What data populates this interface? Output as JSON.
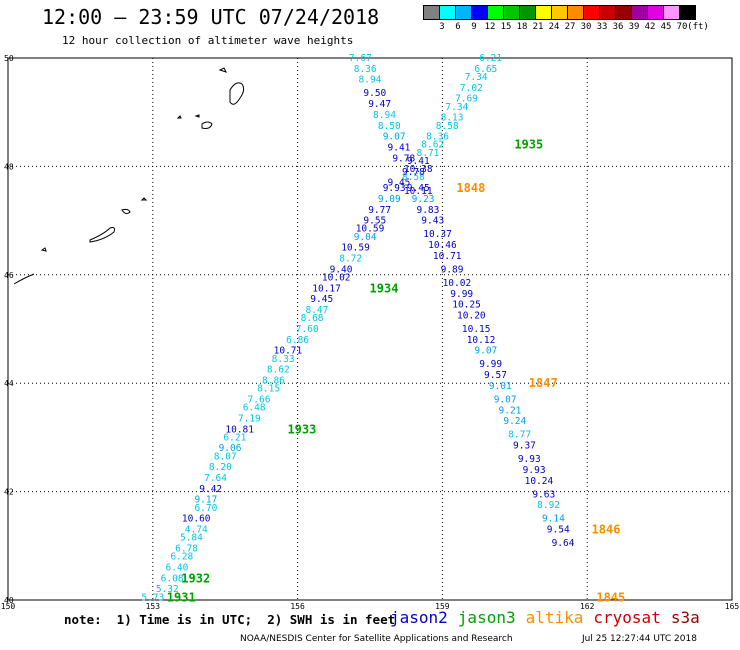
{
  "title": "12:00 — 23:59 UTC 07/24/2018",
  "subtitle": "12 hour collection of altimeter wave heights",
  "colorbar": {
    "colors": [
      "#808080",
      "#00ffff",
      "#00b4ff",
      "#0000ff",
      "#00ff00",
      "#00c800",
      "#009600",
      "#ffff00",
      "#ffc800",
      "#ff8c00",
      "#ff0000",
      "#c80000",
      "#960000",
      "#a000a0",
      "#e000e0",
      "#ff96ff",
      "#000000"
    ],
    "labels": [
      "3",
      "6",
      "9",
      "12",
      "15",
      "18",
      "21",
      "24",
      "27",
      "30",
      "33",
      "36",
      "39",
      "42",
      "45",
      "70",
      "(ft)"
    ]
  },
  "note": "note:  1) Time is in UTC;  2) SWH is in feet",
  "satellites": [
    {
      "name": "jason2",
      "color": "#0000cc"
    },
    {
      "name": "jason3",
      "color": "#00a000"
    },
    {
      "name": "altika",
      "color": "#ff8c00"
    },
    {
      "name": "cryosat",
      "color": "#cc0000"
    },
    {
      "name": "s3a",
      "color": "#990000"
    }
  ],
  "credit": "NOAA/NESDIS Center for Satellite Applications and Research",
  "timestamp": "Jul 25 12:27:44 UTC 2018",
  "chart_data": {
    "type": "scatter",
    "xlim": [
      150,
      165
    ],
    "ylim": [
      40,
      50
    ],
    "xticks": [
      "150",
      "153",
      "156",
      "159",
      "162",
      "165"
    ],
    "yticks": [
      "40",
      "42",
      "44",
      "46",
      "48",
      "50"
    ],
    "grid": true,
    "points": [
      {
        "x": 153.0,
        "y": 40.05,
        "v": "5.73"
      },
      {
        "x": 153.3,
        "y": 40.2,
        "v": "5.32"
      },
      {
        "x": 153.4,
        "y": 40.4,
        "v": "6.08"
      },
      {
        "x": 153.5,
        "y": 40.6,
        "v": "6.40"
      },
      {
        "x": 153.6,
        "y": 40.8,
        "v": "6.28"
      },
      {
        "x": 153.7,
        "y": 40.95,
        "v": "6.78"
      },
      {
        "x": 153.8,
        "y": 41.15,
        "v": "5.84"
      },
      {
        "x": 153.9,
        "y": 41.3,
        "v": "4.74"
      },
      {
        "x": 153.9,
        "y": 41.5,
        "v": "10.60"
      },
      {
        "x": 154.1,
        "y": 41.7,
        "v": "6.70"
      },
      {
        "x": 154.1,
        "y": 41.85,
        "v": "9.17"
      },
      {
        "x": 154.2,
        "y": 42.05,
        "v": "9.42"
      },
      {
        "x": 154.3,
        "y": 42.25,
        "v": "7.64"
      },
      {
        "x": 154.4,
        "y": 42.45,
        "v": "8.20"
      },
      {
        "x": 154.5,
        "y": 42.65,
        "v": "8.07"
      },
      {
        "x": 154.6,
        "y": 42.8,
        "v": "9.06"
      },
      {
        "x": 154.7,
        "y": 43.0,
        "v": "6.21"
      },
      {
        "x": 154.8,
        "y": 43.15,
        "v": "10.81"
      },
      {
        "x": 155.0,
        "y": 43.35,
        "v": "7.19"
      },
      {
        "x": 155.1,
        "y": 43.55,
        "v": "6.48"
      },
      {
        "x": 155.2,
        "y": 43.7,
        "v": "7.66"
      },
      {
        "x": 155.4,
        "y": 43.9,
        "v": "8.15"
      },
      {
        "x": 155.5,
        "y": 44.05,
        "v": "8.86"
      },
      {
        "x": 155.6,
        "y": 44.25,
        "v": "8.62"
      },
      {
        "x": 155.7,
        "y": 44.45,
        "v": "8.33"
      },
      {
        "x": 155.8,
        "y": 44.6,
        "v": "10.71"
      },
      {
        "x": 156.0,
        "y": 44.8,
        "v": "6.86"
      },
      {
        "x": 156.2,
        "y": 45.0,
        "v": "7.60"
      },
      {
        "x": 156.3,
        "y": 45.2,
        "v": "8.68"
      },
      {
        "x": 156.4,
        "y": 45.35,
        "v": "8.47"
      },
      {
        "x": 156.5,
        "y": 45.55,
        "v": "9.45"
      },
      {
        "x": 156.6,
        "y": 45.75,
        "v": "10.17"
      },
      {
        "x": 156.8,
        "y": 45.95,
        "v": "10.02"
      },
      {
        "x": 156.9,
        "y": 46.1,
        "v": "9.40"
      },
      {
        "x": 157.1,
        "y": 46.3,
        "v": "8.72"
      },
      {
        "x": 157.2,
        "y": 46.5,
        "v": "10.59"
      },
      {
        "x": 157.4,
        "y": 46.7,
        "v": "9.04"
      },
      {
        "x": 157.5,
        "y": 46.85,
        "v": "10.59"
      },
      {
        "x": 157.6,
        "y": 47.0,
        "v": "9.55"
      },
      {
        "x": 157.7,
        "y": 47.2,
        "v": "9.77"
      },
      {
        "x": 157.9,
        "y": 47.4,
        "v": "9.09"
      },
      {
        "x": 158.0,
        "y": 47.6,
        "v": "9.93"
      },
      {
        "x": 158.1,
        "y": 47.7,
        "v": "9.45"
      },
      {
        "x": 158.4,
        "y": 47.9,
        "v": "9.78"
      },
      {
        "x": 158.5,
        "y": 48.1,
        "v": "9.41"
      },
      {
        "x": 158.7,
        "y": 48.25,
        "v": "8.71"
      },
      {
        "x": 158.8,
        "y": 48.4,
        "v": "8.62"
      },
      {
        "x": 158.9,
        "y": 48.55,
        "v": "8.36"
      },
      {
        "x": 159.1,
        "y": 48.75,
        "v": "8.58"
      },
      {
        "x": 159.2,
        "y": 48.9,
        "v": "8.13"
      },
      {
        "x": 159.3,
        "y": 49.1,
        "v": "7.34"
      },
      {
        "x": 159.5,
        "y": 49.25,
        "v": "7.69"
      },
      {
        "x": 159.6,
        "y": 49.45,
        "v": "7.02"
      },
      {
        "x": 159.7,
        "y": 49.65,
        "v": "7.34"
      },
      {
        "x": 159.9,
        "y": 49.8,
        "v": "6.65"
      },
      {
        "x": 160.0,
        "y": 50.0,
        "v": "6.21"
      },
      {
        "x": 157.3,
        "y": 50.0,
        "v": "7.67"
      },
      {
        "x": 157.4,
        "y": 49.8,
        "v": "8.36"
      },
      {
        "x": 157.5,
        "y": 49.6,
        "v": "8.94"
      },
      {
        "x": 157.6,
        "y": 49.35,
        "v": "9.50"
      },
      {
        "x": 157.7,
        "y": 49.15,
        "v": "9.47"
      },
      {
        "x": 157.8,
        "y": 48.95,
        "v": "8.94"
      },
      {
        "x": 157.9,
        "y": 48.75,
        "v": "8.50"
      },
      {
        "x": 158.0,
        "y": 48.55,
        "v": "9.07"
      },
      {
        "x": 158.1,
        "y": 48.35,
        "v": "9.41"
      },
      {
        "x": 158.2,
        "y": 48.15,
        "v": "9.78"
      },
      {
        "x": 158.5,
        "y": 47.95,
        "v": "10.38"
      },
      {
        "x": 158.4,
        "y": 47.8,
        "v": "8.58"
      },
      {
        "x": 158.5,
        "y": 47.6,
        "v": "9.45"
      },
      {
        "x": 158.5,
        "y": 47.55,
        "v": "10.11"
      },
      {
        "x": 158.6,
        "y": 47.4,
        "v": "9.23"
      },
      {
        "x": 158.7,
        "y": 47.2,
        "v": "9.83"
      },
      {
        "x": 158.8,
        "y": 47.0,
        "v": "9.43"
      },
      {
        "x": 158.9,
        "y": 46.75,
        "v": "10.37"
      },
      {
        "x": 159.0,
        "y": 46.55,
        "v": "10.46"
      },
      {
        "x": 159.1,
        "y": 46.35,
        "v": "10.71"
      },
      {
        "x": 159.2,
        "y": 46.1,
        "v": "9.89"
      },
      {
        "x": 159.3,
        "y": 45.85,
        "v": "10.02"
      },
      {
        "x": 159.4,
        "y": 45.65,
        "v": "9.99"
      },
      {
        "x": 159.5,
        "y": 45.45,
        "v": "10.25"
      },
      {
        "x": 159.6,
        "y": 45.25,
        "v": "10.20"
      },
      {
        "x": 159.7,
        "y": 45.0,
        "v": "10.15"
      },
      {
        "x": 159.8,
        "y": 44.8,
        "v": "10.12"
      },
      {
        "x": 159.9,
        "y": 44.6,
        "v": "9.07"
      },
      {
        "x": 160.0,
        "y": 44.35,
        "v": "9.99"
      },
      {
        "x": 160.1,
        "y": 44.15,
        "v": "9.57"
      },
      {
        "x": 160.2,
        "y": 43.95,
        "v": "9.01"
      },
      {
        "x": 160.3,
        "y": 43.7,
        "v": "9.07"
      },
      {
        "x": 160.4,
        "y": 43.5,
        "v": "9.21"
      },
      {
        "x": 160.5,
        "y": 43.3,
        "v": "9.24"
      },
      {
        "x": 160.6,
        "y": 43.05,
        "v": "8.77"
      },
      {
        "x": 160.7,
        "y": 42.85,
        "v": "9.37"
      },
      {
        "x": 160.8,
        "y": 42.6,
        "v": "9.93"
      },
      {
        "x": 160.9,
        "y": 42.4,
        "v": "9.93"
      },
      {
        "x": 161.0,
        "y": 42.2,
        "v": "10.24"
      },
      {
        "x": 161.1,
        "y": 41.95,
        "v": "9.63"
      },
      {
        "x": 161.2,
        "y": 41.75,
        "v": "8.92"
      },
      {
        "x": 161.3,
        "y": 41.5,
        "v": "9.14"
      },
      {
        "x": 161.4,
        "y": 41.3,
        "v": "9.54"
      },
      {
        "x": 161.5,
        "y": 41.05,
        "v": "9.64"
      }
    ],
    "pass_labels": [
      {
        "x": 153.0,
        "y": 40.05,
        "v": "1931",
        "sat": "jason3"
      },
      {
        "x": 153.3,
        "y": 40.4,
        "v": "1932",
        "sat": "jason3"
      },
      {
        "x": 155.5,
        "y": 43.15,
        "v": "1933",
        "sat": "jason3"
      },
      {
        "x": 157.2,
        "y": 45.75,
        "v": "1934",
        "sat": "jason3"
      },
      {
        "x": 160.2,
        "y": 48.4,
        "v": "1935",
        "sat": "jason3"
      },
      {
        "x": 159.0,
        "y": 47.6,
        "v": "1848",
        "sat": "altika"
      },
      {
        "x": 160.5,
        "y": 44.0,
        "v": "1847",
        "sat": "altika"
      },
      {
        "x": 161.8,
        "y": 41.3,
        "v": "1846",
        "sat": "altika"
      },
      {
        "x": 161.9,
        "y": 40.05,
        "v": "1845",
        "sat": "altika"
      }
    ]
  }
}
